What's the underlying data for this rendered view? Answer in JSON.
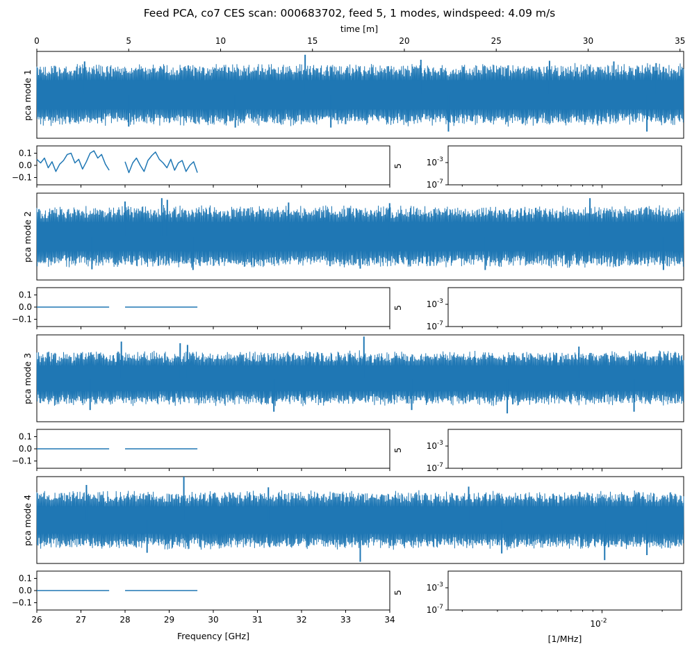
{
  "title": "Feed PCA, co7 CES scan: 000683702, feed 5, 1 modes, windspeed: 4.09 m/s",
  "colors": {
    "series": "#1f77b4",
    "axis": "#000000",
    "background": "#ffffff"
  },
  "time_axis": {
    "label": "time [m]",
    "range": [
      0,
      35.2
    ],
    "ticks": [
      {
        "value": 0,
        "label": "0"
      },
      {
        "value": 5,
        "label": "5"
      },
      {
        "value": 10,
        "label": "10"
      },
      {
        "value": 15,
        "label": "15"
      },
      {
        "value": 20,
        "label": "20"
      },
      {
        "value": 25,
        "label": "25"
      },
      {
        "value": 30,
        "label": "30"
      },
      {
        "value": 35,
        "label": "35"
      }
    ]
  },
  "freq_axis": {
    "label": "Frequency [GHz]",
    "range": [
      26,
      34
    ],
    "ticks": [
      {
        "value": 26,
        "label": "26"
      },
      {
        "value": 27,
        "label": "27"
      },
      {
        "value": 28,
        "label": "28"
      },
      {
        "value": 29,
        "label": "29"
      },
      {
        "value": 30,
        "label": "30"
      },
      {
        "value": 31,
        "label": "31"
      },
      {
        "value": 32,
        "label": "32"
      },
      {
        "value": 33,
        "label": "33"
      },
      {
        "value": 34,
        "label": "34"
      }
    ]
  },
  "psd_axis": {
    "label": "[1/MHz]",
    "range": [
      0.0017,
      0.025
    ],
    "major_ticks": [
      {
        "value": 0.01,
        "label": "10^-2"
      }
    ],
    "minor_ticks": [
      0.002,
      0.003,
      0.004,
      0.005,
      0.006,
      0.007,
      0.008,
      0.009,
      0.02
    ],
    "y_range": [
      1e-07,
      1
    ],
    "y_ticks": [
      {
        "value": 0.001,
        "label": "10^-3"
      },
      {
        "value": 1e-07,
        "label": "10^-7"
      }
    ]
  },
  "chart_data": [
    {
      "type": "line",
      "ylabel": "pca mode 1",
      "x_unit": "time [m]",
      "x_range": [
        0,
        35.2
      ],
      "envelope": {
        "mean": 0,
        "typical_half_width": 0.8,
        "max": 1.2,
        "min": -1.1
      },
      "spikes": [
        {
          "x": 14.6,
          "y": 1.2
        },
        {
          "x": 20.9,
          "y": 1.05
        },
        {
          "x": 33.7,
          "y": 0.95
        },
        {
          "x": 31.4,
          "y": 1.0
        },
        {
          "x": 27.9,
          "y": 1.02
        },
        {
          "x": 2.6,
          "y": 1.0
        }
      ],
      "dips": [
        {
          "x": 22.4,
          "y": -1.1
        },
        {
          "x": 33.2,
          "y": -1.1
        },
        {
          "x": 16.0,
          "y": -0.98
        },
        {
          "x": 10.8,
          "y": -0.98
        },
        {
          "x": 5.0,
          "y": -0.95
        }
      ]
    },
    {
      "type": "line",
      "x_unit": "Frequency [GHz]",
      "x_range": [
        26,
        34
      ],
      "y_range": [
        -0.16,
        0.16
      ],
      "y_ticks": [
        {
          "value": 0.1,
          "label": "0.1"
        },
        {
          "value": 0.0,
          "label": "0.0"
        },
        {
          "value": -0.1,
          "label": "−0.1"
        }
      ],
      "segments": [
        [
          26.0,
          27.64
        ],
        [
          28.0,
          29.64
        ]
      ],
      "profile": "wiggle",
      "sample_values": [
        0.05,
        0.02,
        0.06,
        -0.02,
        0.03,
        -0.05,
        0.01,
        0.04,
        0.09,
        0.1,
        0.02,
        0.05,
        -0.03,
        0.03,
        0.1,
        0.12,
        0.06,
        0.09,
        0.01,
        -0.04,
        0.03,
        -0.06,
        0.02,
        0.06,
        0.0,
        -0.05,
        0.04,
        0.08,
        0.11,
        0.05,
        0.02,
        -0.02,
        0.05,
        -0.04,
        0.02,
        0.04,
        -0.05,
        0.0,
        0.03,
        -0.06
      ],
      "side_label": "5"
    },
    {
      "type": "line",
      "ylabel": "pca mode 2",
      "x_unit": "time [m]",
      "x_range": [
        0,
        35.2
      ],
      "envelope": {
        "mean": 0,
        "typical_half_width": 0.8,
        "max": 1.2,
        "min": -1.05
      },
      "spikes": [
        {
          "x": 6.8,
          "y": 1.15
        },
        {
          "x": 7.1,
          "y": 1.1
        },
        {
          "x": 30.1,
          "y": 1.15
        },
        {
          "x": 4.8,
          "y": 1.05
        },
        {
          "x": 13.7,
          "y": 1.02
        },
        {
          "x": 19.2,
          "y": 1.0
        }
      ],
      "dips": [
        {
          "x": 8.5,
          "y": -1.0
        },
        {
          "x": 24.4,
          "y": -1.0
        },
        {
          "x": 34.1,
          "y": -1.0
        },
        {
          "x": 3.0,
          "y": -0.98
        },
        {
          "x": 17.6,
          "y": -0.96
        }
      ]
    },
    {
      "type": "line",
      "x_unit": "Frequency [GHz]",
      "x_range": [
        26,
        34
      ],
      "y_range": [
        -0.16,
        0.16
      ],
      "y_ticks": [
        {
          "value": 0.1,
          "label": "0.1"
        },
        {
          "value": 0.0,
          "label": "0.0"
        },
        {
          "value": -0.1,
          "label": "−0.1"
        }
      ],
      "segments": [
        [
          26.0,
          27.64
        ],
        [
          28.0,
          29.64
        ]
      ],
      "profile": "flat",
      "sample_values": [
        0.0
      ],
      "side_label": "5"
    },
    {
      "type": "line",
      "ylabel": "pca mode 3",
      "x_unit": "time [m]",
      "x_range": [
        0,
        35.2
      ],
      "envelope": {
        "mean": 0,
        "typical_half_width": 0.7,
        "max": 1.25,
        "min": -1.05
      },
      "spikes": [
        {
          "x": 17.8,
          "y": 1.25
        },
        {
          "x": 4.6,
          "y": 1.1
        },
        {
          "x": 7.8,
          "y": 1.05
        },
        {
          "x": 8.2,
          "y": 1.0
        },
        {
          "x": 29.5,
          "y": 0.95
        }
      ],
      "dips": [
        {
          "x": 25.6,
          "y": -1.05
        },
        {
          "x": 12.9,
          "y": -1.0
        },
        {
          "x": 32.5,
          "y": -1.0
        },
        {
          "x": 2.9,
          "y": -0.95
        },
        {
          "x": 20.4,
          "y": -0.95
        }
      ]
    },
    {
      "type": "line",
      "x_unit": "Frequency [GHz]",
      "x_range": [
        26,
        34
      ],
      "y_range": [
        -0.16,
        0.16
      ],
      "y_ticks": [
        {
          "value": 0.1,
          "label": "0.1"
        },
        {
          "value": 0.0,
          "label": "0.0"
        },
        {
          "value": -0.1,
          "label": "−0.1"
        }
      ],
      "segments": [
        [
          26.0,
          27.64
        ],
        [
          28.0,
          29.64
        ]
      ],
      "profile": "flat",
      "sample_values": [
        0.0
      ],
      "side_label": "5"
    },
    {
      "type": "line",
      "ylabel": "pca mode 4",
      "x_unit": "time [m]",
      "x_range": [
        0,
        35.2
      ],
      "envelope": {
        "mean": 0,
        "typical_half_width": 0.75,
        "max": 1.3,
        "min": -1.25
      },
      "spikes": [
        {
          "x": 8.0,
          "y": 1.3
        },
        {
          "x": 2.7,
          "y": 1.05
        },
        {
          "x": 23.5,
          "y": 1.0
        },
        {
          "x": 12.6,
          "y": 0.98
        }
      ],
      "dips": [
        {
          "x": 17.6,
          "y": -1.25
        },
        {
          "x": 30.9,
          "y": -1.2
        },
        {
          "x": 33.2,
          "y": -1.05
        },
        {
          "x": 25.3,
          "y": -1.0
        },
        {
          "x": 6.0,
          "y": -0.98
        }
      ]
    },
    {
      "type": "line",
      "x_unit": "Frequency [GHz]",
      "x_range": [
        26,
        34
      ],
      "y_range": [
        -0.16,
        0.16
      ],
      "y_ticks": [
        {
          "value": 0.1,
          "label": "0.1"
        },
        {
          "value": 0.0,
          "label": "0.0"
        },
        {
          "value": -0.1,
          "label": "−0.1"
        }
      ],
      "segments": [
        [
          26.0,
          27.64
        ],
        [
          28.0,
          29.64
        ]
      ],
      "profile": "flat",
      "sample_values": [
        0.0
      ],
      "side_label": "5"
    }
  ]
}
